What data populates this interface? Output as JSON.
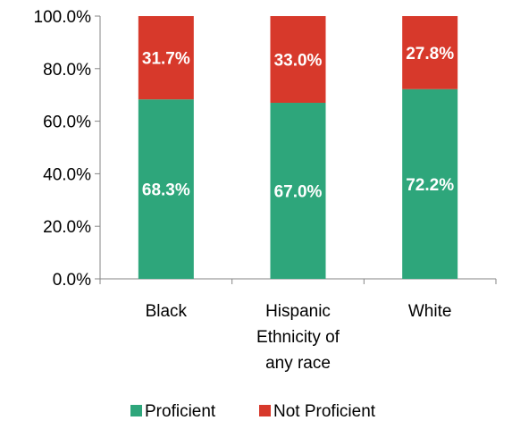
{
  "chart_data": {
    "type": "bar",
    "stacked": true,
    "percent_axis": true,
    "categories": [
      [
        "Black"
      ],
      [
        "Hispanic",
        "Ethnicity of",
        "any race"
      ],
      [
        "White"
      ]
    ],
    "series": [
      {
        "name": "Proficient",
        "values": [
          68.3,
          67.0,
          72.2
        ],
        "labels": [
          "68.3%",
          "67.0%",
          "72.2%"
        ],
        "color": "#2ea67b"
      },
      {
        "name": "Not Proficient",
        "values": [
          31.7,
          33.0,
          27.8
        ],
        "labels": [
          "31.7%",
          "33.0%",
          "27.8%"
        ],
        "color": "#d7392b"
      }
    ],
    "yticks": [
      "0.0%",
      "20.0%",
      "40.0%",
      "60.0%",
      "80.0%",
      "100.0%"
    ],
    "ytick_values": [
      0,
      20,
      40,
      60,
      80,
      100
    ],
    "ylim": [
      0,
      100
    ],
    "grid": false,
    "legend": "bottom"
  }
}
